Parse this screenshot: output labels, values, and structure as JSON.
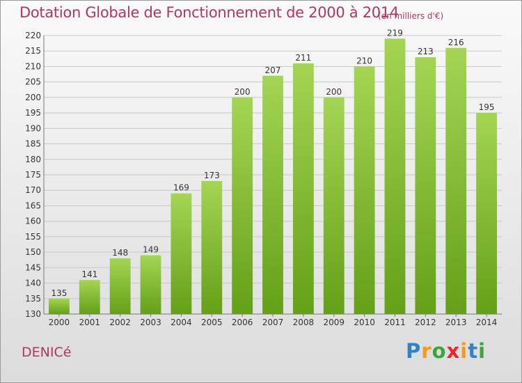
{
  "chart_data": {
    "type": "bar",
    "title": "Dotation Globale de Fonctionnement de 2000 à 2014",
    "subtitle": "(en milliers d'€)",
    "categories": [
      "2000",
      "2001",
      "2002",
      "2003",
      "2004",
      "2005",
      "2006",
      "2007",
      "2008",
      "2009",
      "2010",
      "2011",
      "2012",
      "2013",
      "2014"
    ],
    "values": [
      135,
      141,
      148,
      149,
      169,
      173,
      200,
      207,
      211,
      200,
      210,
      219,
      213,
      216,
      195
    ],
    "ylim": [
      130,
      220
    ],
    "ytick_step": 5,
    "xlabel": "",
    "ylabel": "",
    "grid": true,
    "bar_color_light": "#a4d554",
    "bar_color_dark": "#64a018",
    "grid_color": "#c8c8c8"
  },
  "footer": {
    "town": "DENICé",
    "logo_letters": [
      "P",
      "r",
      "o",
      "x",
      "i",
      "t",
      "i"
    ],
    "logo_colors": [
      "#2f83c6",
      "#f29b1f",
      "#3aa635",
      "#e8262c",
      "#f29b1f",
      "#2f83c6",
      "#3aa635"
    ]
  }
}
